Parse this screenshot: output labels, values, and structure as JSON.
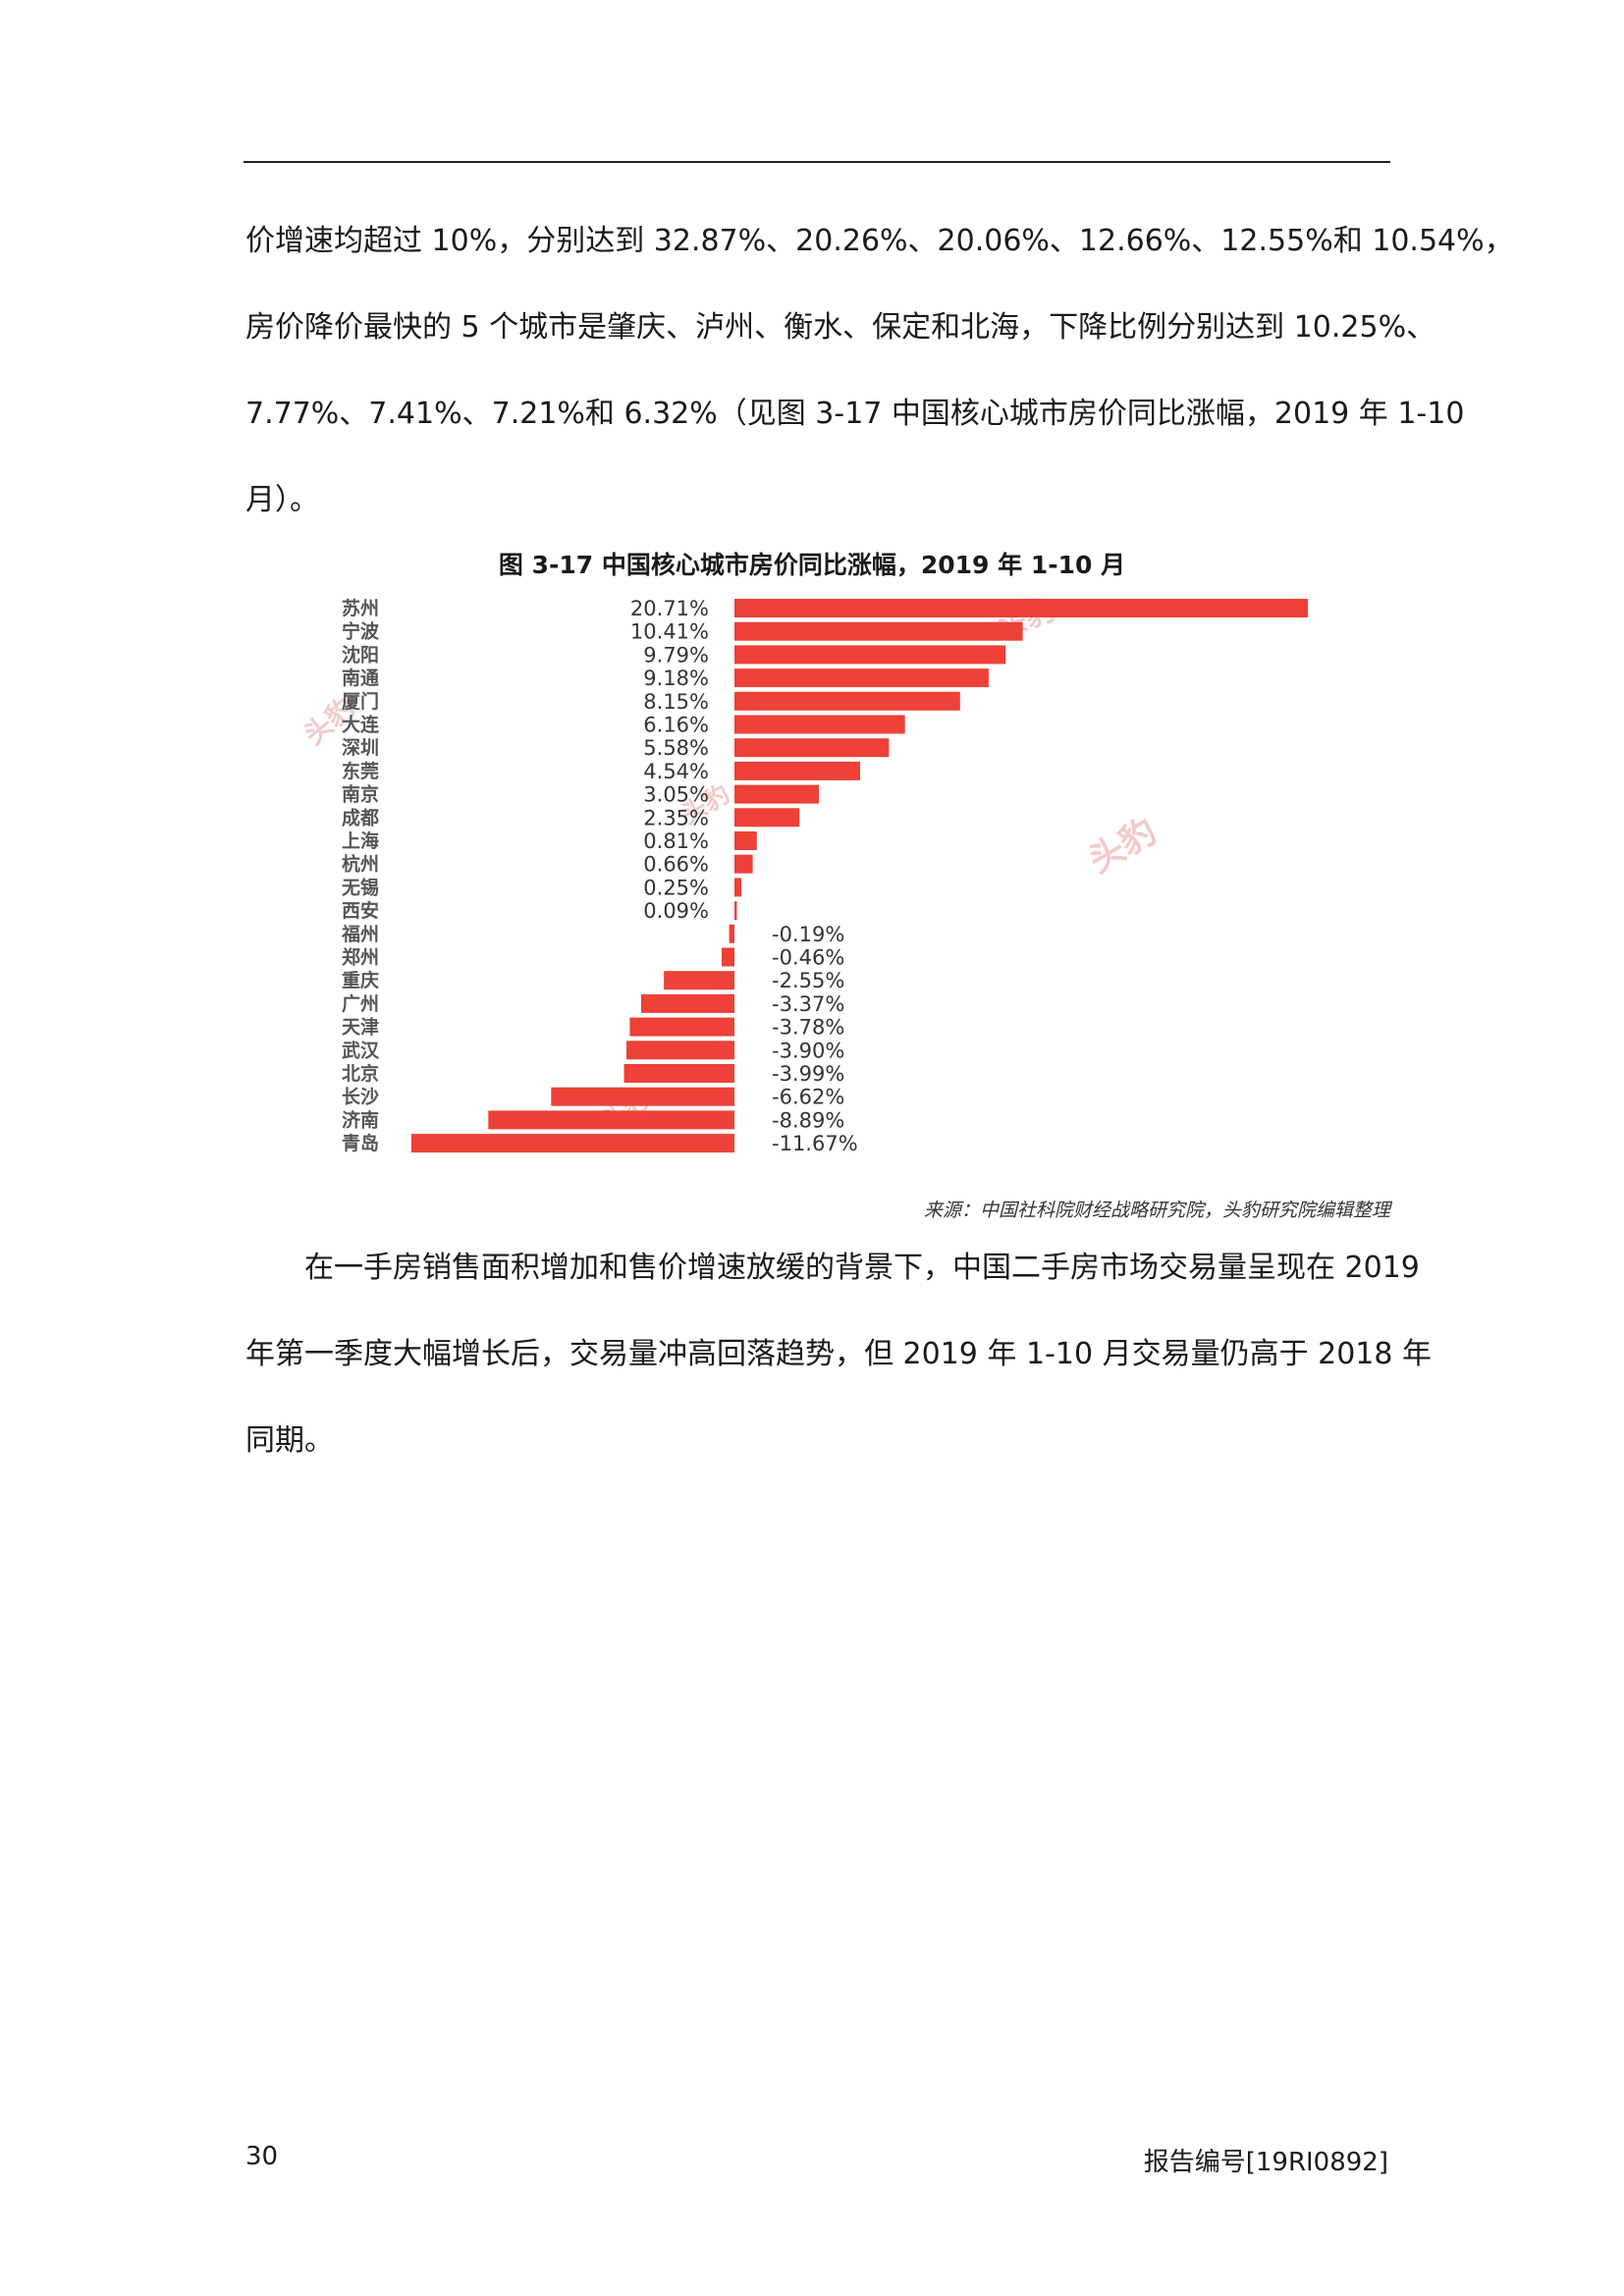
{
  "body_paragraph_1_lines": [
    "价增速均超过 10%，分别达到 32.87%、20.26%、20.06%、12.66%、12.55%和 10.54%，",
    "房价降价最快的 5 个城市是肇庆、泸州、衡水、保定和北海，下降比例分别达到 10.25%、",
    "7.77%、7.41%、7.21%和 6.32%（见图 3-17 中国核心城市房价同比涨幅，2019 年 1-10",
    "月）。"
  ],
  "figure_title": "图 3-17 中国核心城市房价同比涨幅，2019 年 1-10 月",
  "figure_source": "来源：中国社科院财经战略研究院，头豹研究院编辑整理",
  "watermark": "头豹",
  "chart_data": {
    "type": "bar",
    "orientation": "horizontal",
    "title": "图 3-17 中国核心城市房价同比涨幅，2019 年 1-10 月",
    "categories": [
      "苏州",
      "宁波",
      "沈阳",
      "南通",
      "厦门",
      "大连",
      "深圳",
      "东莞",
      "南京",
      "成都",
      "上海",
      "杭州",
      "无锡",
      "西安",
      "福州",
      "郑州",
      "重庆",
      "广州",
      "天津",
      "武汉",
      "北京",
      "长沙",
      "济南",
      "青岛"
    ],
    "values": [
      20.71,
      10.41,
      9.79,
      9.18,
      8.15,
      6.16,
      5.58,
      4.54,
      3.05,
      2.35,
      0.81,
      0.66,
      0.25,
      0.09,
      -0.19,
      -0.46,
      -2.55,
      -3.37,
      -3.78,
      -3.9,
      -3.99,
      -6.62,
      -8.89,
      -11.67
    ],
    "labels": [
      "20.71%",
      "10.41%",
      "9.79%",
      "9.18%",
      "8.15%",
      "6.16%",
      "5.58%",
      "4.54%",
      "3.05%",
      "2.35%",
      "0.81%",
      "0.66%",
      "0.25%",
      "0.09%",
      "-0.19%",
      "-0.46%",
      "-2.55%",
      "-3.37%",
      "-3.78%",
      "-3.90%",
      "-3.99%",
      "-6.62%",
      "-8.89%",
      "-11.67%"
    ],
    "bar_color": "#ee4137",
    "grid": false,
    "legend": "none"
  },
  "body_paragraph_2_lines": [
    "在一手房销售面积增加和售价增速放缓的背景下，中国二手房市场交易量呈现在 2019",
    "年第一季度大幅增长后，交易量冲高回落趋势，但 2019 年 1-10 月交易量仍高于 2018 年",
    "同期。"
  ],
  "footer": {
    "page_number": "30",
    "report_number": "报告编号[19RI0892]"
  }
}
